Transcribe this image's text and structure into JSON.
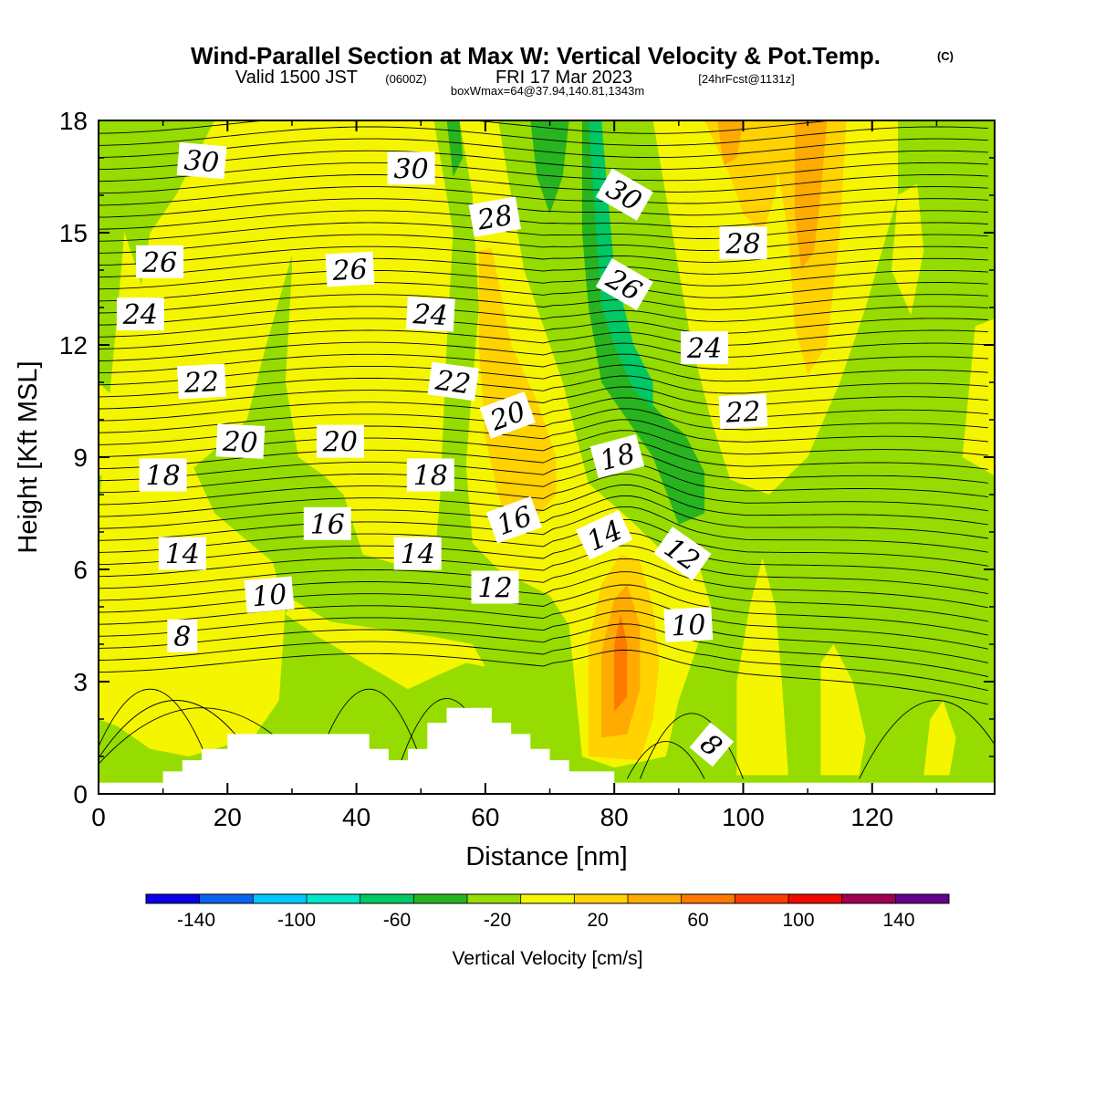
{
  "title": {
    "main": "Wind-Parallel Section at Max W: Vertical Velocity & Pot.Temp.",
    "main_suffix": "(C)",
    "valid_prefix": "Valid 1500 JST",
    "valid_zone": "(0600Z)",
    "valid_date": "FRI 17 Mar 2023",
    "valid_fcst": "[24hrFcst@1131z]",
    "box": "boxWmax=64@37.94,140.81,1343m"
  },
  "chart_data": {
    "type": "heatmap",
    "xlabel": "Distance [nm]",
    "ylabel": "Height [Kft MSL]",
    "xlim": [
      0,
      139
    ],
    "ylim": [
      0,
      18
    ],
    "x_ticks": [
      0,
      20,
      40,
      60,
      80,
      100,
      120
    ],
    "y_ticks": [
      0,
      3,
      6,
      9,
      12,
      15,
      18
    ],
    "colorbar": {
      "label": "Vertical Velocity [cm/s]",
      "range": [
        -160,
        160
      ],
      "tick_values": [
        -140,
        -100,
        -60,
        -20,
        20,
        60,
        100,
        140
      ],
      "colors": [
        "#0a00e6",
        "#0a64f0",
        "#00c8ff",
        "#00e6c8",
        "#00c864",
        "#28b41e",
        "#96dc00",
        "#f5f500",
        "#ffd200",
        "#ffaa00",
        "#ff7800",
        "#ff3c00",
        "#f00a00",
        "#a00050",
        "#64008c"
      ]
    },
    "potential_temperature_labels": [
      {
        "value": "30",
        "x": 16,
        "y": 16.9,
        "rot": 5
      },
      {
        "value": "30",
        "x": 48.5,
        "y": 16.7,
        "rot": 0
      },
      {
        "value": "30",
        "x": 81.5,
        "y": 16.0,
        "rot": 30
      },
      {
        "value": "28",
        "x": 61.5,
        "y": 15.4,
        "rot": -10
      },
      {
        "value": "28",
        "x": 100,
        "y": 14.7,
        "rot": 0
      },
      {
        "value": "26",
        "x": 9.5,
        "y": 14.2,
        "rot": 0
      },
      {
        "value": "26",
        "x": 39,
        "y": 14.0,
        "rot": -3
      },
      {
        "value": "26",
        "x": 81.5,
        "y": 13.6,
        "rot": 30
      },
      {
        "value": "24",
        "x": 6.5,
        "y": 12.8,
        "rot": 0
      },
      {
        "value": "24",
        "x": 51.5,
        "y": 12.8,
        "rot": 3
      },
      {
        "value": "24",
        "x": 94,
        "y": 11.9,
        "rot": 0
      },
      {
        "value": "22",
        "x": 16,
        "y": 11.0,
        "rot": -3
      },
      {
        "value": "22",
        "x": 55,
        "y": 11.0,
        "rot": 8
      },
      {
        "value": "22",
        "x": 100,
        "y": 10.2,
        "rot": -3
      },
      {
        "value": "20",
        "x": 22,
        "y": 9.4,
        "rot": 3
      },
      {
        "value": "20",
        "x": 63.5,
        "y": 10.1,
        "rot": -20
      },
      {
        "value": "20",
        "x": 37.5,
        "y": 9.4,
        "rot": 0
      },
      {
        "value": "18",
        "x": 10,
        "y": 8.5,
        "rot": 0
      },
      {
        "value": "18",
        "x": 51.5,
        "y": 8.5,
        "rot": 0
      },
      {
        "value": "18",
        "x": 80.5,
        "y": 9.0,
        "rot": -15
      },
      {
        "value": "16",
        "x": 35.5,
        "y": 7.2,
        "rot": 0
      },
      {
        "value": "16",
        "x": 64.5,
        "y": 7.3,
        "rot": -20
      },
      {
        "value": "14",
        "x": 13,
        "y": 6.4,
        "rot": 0
      },
      {
        "value": "14",
        "x": 49.5,
        "y": 6.4,
        "rot": 0
      },
      {
        "value": "14",
        "x": 78.5,
        "y": 6.9,
        "rot": -25
      },
      {
        "value": "12",
        "x": 61.5,
        "y": 5.5,
        "rot": 0
      },
      {
        "value": "12",
        "x": 90.5,
        "y": 6.4,
        "rot": 35
      },
      {
        "value": "10",
        "x": 26.5,
        "y": 5.3,
        "rot": -5
      },
      {
        "value": "10",
        "x": 91.5,
        "y": 4.5,
        "rot": -3
      },
      {
        "value": "8",
        "x": 13,
        "y": 4.2,
        "rot": 0
      },
      {
        "value": "8",
        "x": 95,
        "y": 1.3,
        "rot": 40
      }
    ]
  }
}
